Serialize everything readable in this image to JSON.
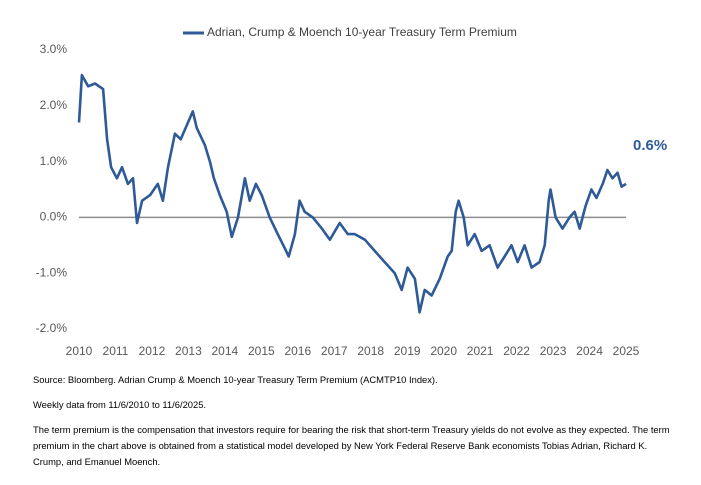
{
  "chart_data": {
    "type": "line",
    "x": [
      2010.0,
      2010.08,
      2010.25,
      2010.44,
      2010.66,
      2010.77,
      2010.88,
      2011.04,
      2011.18,
      2011.34,
      2011.48,
      2011.59,
      2011.73,
      2011.95,
      2012.16,
      2012.3,
      2012.44,
      2012.63,
      2012.79,
      2012.99,
      2013.12,
      2013.23,
      2013.45,
      2013.59,
      2013.7,
      2013.86,
      2014.05,
      2014.19,
      2014.36,
      2014.55,
      2014.68,
      2014.85,
      2015.01,
      2015.23,
      2015.45,
      2015.64,
      2015.75,
      2015.92,
      2016.05,
      2016.19,
      2016.41,
      2016.66,
      2016.88,
      2017.15,
      2017.37,
      2017.56,
      2017.84,
      2018.11,
      2018.38,
      2018.66,
      2018.85,
      2019.01,
      2019.21,
      2019.34,
      2019.48,
      2019.67,
      2019.89,
      2020.11,
      2020.22,
      2020.33,
      2020.41,
      2020.55,
      2020.66,
      2020.85,
      2021.04,
      2021.26,
      2021.48,
      2021.67,
      2021.86,
      2022.03,
      2022.22,
      2022.41,
      2022.63,
      2022.77,
      2022.88,
      2022.93,
      2023.07,
      2023.26,
      2023.45,
      2023.59,
      2023.73,
      2023.89,
      2024.05,
      2024.19,
      2024.36,
      2024.49,
      2024.63,
      2024.77,
      2024.88,
      2025.0
    ],
    "series": [
      {
        "name": "Adrian, Crump & Moench 10-year Treasury Term Premium",
        "color": "#2e5a97",
        "values": [
          1.7,
          2.55,
          2.35,
          2.4,
          2.3,
          1.4,
          0.9,
          0.7,
          0.9,
          0.6,
          0.7,
          -0.1,
          0.3,
          0.4,
          0.6,
          0.3,
          0.9,
          1.5,
          1.4,
          1.7,
          1.9,
          1.6,
          1.3,
          1.0,
          0.7,
          0.4,
          0.1,
          -0.35,
          0.0,
          0.7,
          0.3,
          0.6,
          0.4,
          0.0,
          -0.3,
          -0.55,
          -0.7,
          -0.3,
          0.3,
          0.1,
          0.0,
          -0.2,
          -0.4,
          -0.1,
          -0.3,
          -0.3,
          -0.4,
          -0.6,
          -0.8,
          -1.0,
          -1.3,
          -0.9,
          -1.1,
          -1.7,
          -1.3,
          -1.4,
          -1.1,
          -0.7,
          -0.6,
          0.1,
          0.3,
          0.0,
          -0.5,
          -0.3,
          -0.6,
          -0.5,
          -0.9,
          -0.7,
          -0.5,
          -0.8,
          -0.5,
          -0.9,
          -0.8,
          -0.5,
          0.3,
          0.5,
          0.0,
          -0.2,
          0.0,
          0.1,
          -0.2,
          0.2,
          0.5,
          0.35,
          0.6,
          0.85,
          0.7,
          0.8,
          0.55,
          0.6
        ]
      }
    ],
    "end_label": "0.6%",
    "xlim": [
      2010,
      2025
    ],
    "xticks": [
      2010,
      2011,
      2012,
      2013,
      2014,
      2015,
      2016,
      2017,
      2018,
      2019,
      2020,
      2021,
      2022,
      2023,
      2024,
      2025
    ],
    "ylim": [
      -2,
      3
    ],
    "yticks": [
      {
        "value": -2,
        "label": "-2.0%"
      },
      {
        "value": -1,
        "label": "-1.0%"
      },
      {
        "value": 0,
        "label": "0.0%"
      },
      {
        "value": 1,
        "label": "1.0%"
      },
      {
        "value": 2,
        "label": "2.0%"
      },
      {
        "value": 3,
        "label": "3.0%"
      }
    ],
    "zero_line": true,
    "legend": "top"
  },
  "notes": [
    "Source: Bloomberg. Adrian Crump & Moench 10-year Treasury Term Premium (ACMTP10 Index).",
    "Weekly data from 11/6/2010 to 11/6/2025.",
    "The term premium is the compensation that investors require for bearing the risk that short-term Treasury yields do not evolve as they expected. The term premium in the chart above is obtained from a statistical model developed by New York Federal Reserve Bank economists Tobias Adrian, Richard K. Crump, and Emanuel Moench."
  ]
}
